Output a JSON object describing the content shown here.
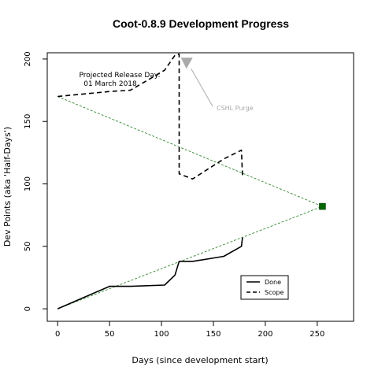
{
  "chart_data": {
    "type": "line",
    "title": "Coot-0.8.9 Development Progress",
    "xlabel": "Days (since development start)",
    "ylabel": "Dev Points (aka 'Half-Days')",
    "xlim": [
      -10,
      285
    ],
    "ylim": [
      -10,
      205
    ],
    "xticks": [
      0,
      50,
      100,
      150,
      200,
      250
    ],
    "yticks": [
      0,
      50,
      100,
      150,
      200
    ],
    "grid": false,
    "legend": "bottom-right",
    "series": [
      {
        "name": "Done",
        "style": "solid",
        "color": "#000000",
        "x": [
          0,
          50,
          70,
          103,
          113,
          117,
          130,
          160,
          177,
          178
        ],
        "y": [
          0,
          18,
          18,
          19,
          27,
          38,
          38,
          42,
          50,
          57
        ]
      },
      {
        "name": "Scope",
        "style": "dashed",
        "color": "#000000",
        "x": [
          0,
          50,
          70,
          103,
          113,
          117,
          117,
          130,
          160,
          177,
          178
        ],
        "y": [
          170,
          174,
          175,
          191,
          203,
          204,
          108,
          104,
          120,
          127,
          107
        ]
      }
    ],
    "projections": [
      {
        "x": [
          0,
          255
        ],
        "y": [
          170,
          82
        ],
        "color": "#338833"
      },
      {
        "x": [
          0,
          255
        ],
        "y": [
          0,
          82
        ],
        "color": "#338833"
      }
    ],
    "release_marker": {
      "x": 255,
      "y": 82,
      "color": "#006600"
    },
    "annotations": {
      "release_line1": "Projected Release Day:",
      "release_line2": "01 March 2018",
      "purge_label": "CSHL Purge",
      "purge_color": "#aaaaaa",
      "purge_target": {
        "x": 124,
        "y": 196
      }
    }
  }
}
